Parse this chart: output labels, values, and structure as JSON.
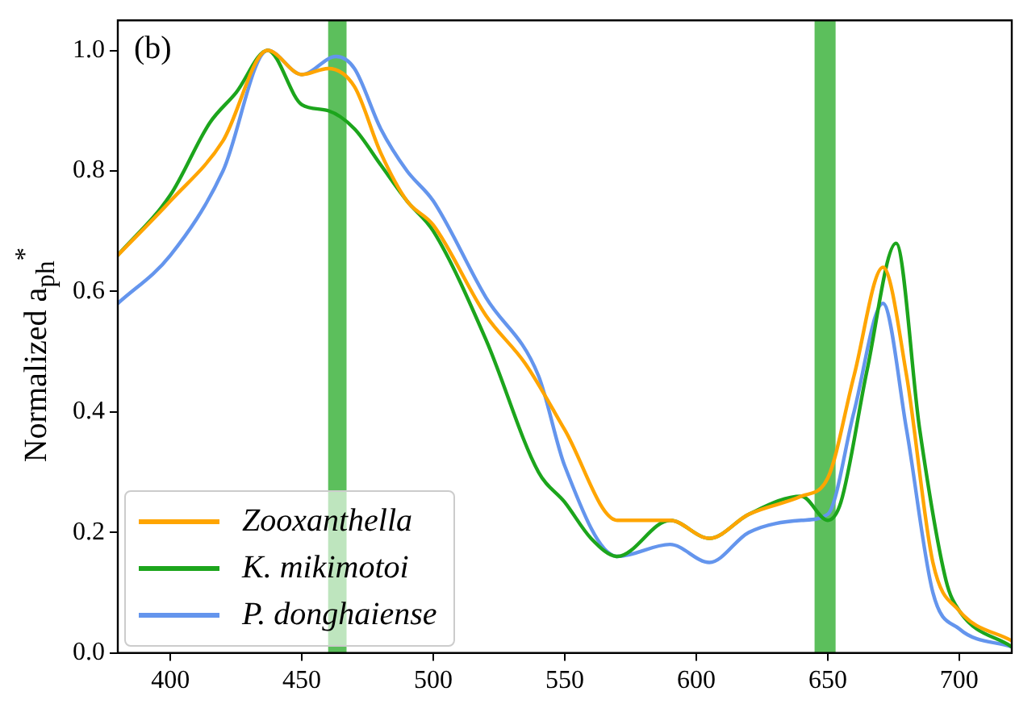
{
  "chart_data": {
    "type": "line",
    "ylabel": "Normalized a$_{ph}$$^{*}$",
    "annotations": [
      "(b)"
    ],
    "xlim": [
      380,
      720
    ],
    "xticks": [
      400,
      450,
      500,
      550,
      600,
      650,
      700
    ],
    "ylim": [
      0,
      1.05
    ],
    "yticks": [
      {
        "value": 0,
        "label": "0.0"
      },
      0.2,
      0.4,
      0.6,
      0.8,
      {
        "value": 1,
        "label": "1.0"
      }
    ],
    "legend": "bottom left",
    "grid": false,
    "marker": "none",
    "line_style": "solid",
    "bands": [
      {
        "axis": "x",
        "from": 460,
        "to": 467,
        "color": "#5cbf5c"
      },
      {
        "axis": "x",
        "from": 645,
        "to": 653,
        "color": "#5cbf5c"
      }
    ],
    "series": [
      {
        "name": "Zooxanthella",
        "color": "#ffa500",
        "x": [
          380,
          400,
          420,
          437,
          450,
          460,
          470,
          480,
          490,
          500,
          520,
          535,
          550,
          570,
          590,
          605,
          620,
          640,
          650,
          660,
          671,
          680,
          690,
          700,
          720
        ],
        "values": [
          0.66,
          0.75,
          0.85,
          1.0,
          0.96,
          0.97,
          0.94,
          0.83,
          0.75,
          0.71,
          0.56,
          0.48,
          0.37,
          0.22,
          0.22,
          0.19,
          0.23,
          0.26,
          0.29,
          0.46,
          0.64,
          0.46,
          0.15,
          0.07,
          0.02
        ]
      },
      {
        "name": "K. mikimotoi",
        "color": "#1ca51c",
        "x": [
          380,
          400,
          415,
          425,
          437,
          450,
          460,
          470,
          480,
          490,
          500,
          520,
          540,
          550,
          560,
          570,
          590,
          605,
          620,
          640,
          650,
          655,
          665,
          676,
          685,
          695,
          700,
          720
        ],
        "values": [
          0.66,
          0.76,
          0.88,
          0.93,
          1.0,
          0.91,
          0.9,
          0.87,
          0.81,
          0.75,
          0.7,
          0.52,
          0.3,
          0.25,
          0.19,
          0.16,
          0.22,
          0.19,
          0.23,
          0.26,
          0.22,
          0.25,
          0.47,
          0.68,
          0.37,
          0.12,
          0.07,
          0.01
        ]
      },
      {
        "name": "P. donghaiense",
        "color": "#6495ed",
        "x": [
          380,
          400,
          420,
          437,
          450,
          463,
          470,
          480,
          490,
          500,
          520,
          540,
          550,
          570,
          590,
          605,
          620,
          640,
          650,
          660,
          671,
          680,
          690,
          700,
          720
        ],
        "values": [
          0.58,
          0.66,
          0.8,
          1.0,
          0.96,
          0.99,
          0.97,
          0.87,
          0.8,
          0.75,
          0.59,
          0.46,
          0.31,
          0.16,
          0.18,
          0.15,
          0.2,
          0.22,
          0.23,
          0.4,
          0.58,
          0.37,
          0.1,
          0.04,
          0.01
        ]
      }
    ]
  }
}
